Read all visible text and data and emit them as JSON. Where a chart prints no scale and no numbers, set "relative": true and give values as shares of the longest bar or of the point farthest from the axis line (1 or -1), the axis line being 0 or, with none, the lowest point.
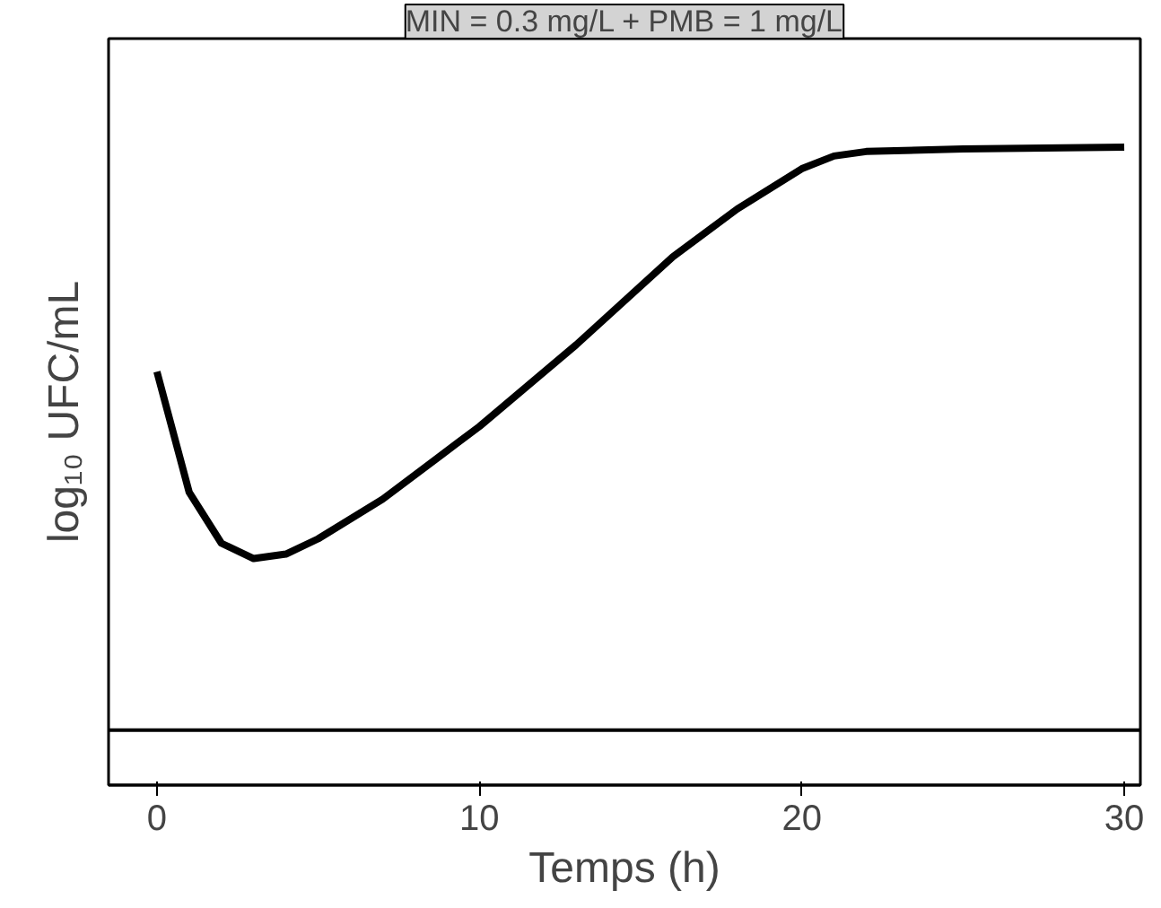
{
  "chart_data": {
    "type": "line",
    "title": "MIN = 0.3 mg/L + PMB = 1 mg/L",
    "xlabel": "Temps (h)",
    "ylabel": "log₁₀ UFC/mL",
    "relative": true,
    "x": [
      0,
      1,
      2,
      3,
      4,
      5,
      7,
      10,
      13,
      16,
      18,
      20,
      21,
      22,
      25,
      30
    ],
    "series": [
      {
        "color": "#000000",
        "values": [
          0.648,
          0.459,
          0.379,
          0.355,
          0.362,
          0.386,
          0.448,
          0.562,
          0.69,
          0.828,
          0.903,
          0.966,
          0.986,
          0.993,
          0.997,
          1
        ]
      }
    ],
    "xlim": [
      -1.5,
      30.5
    ],
    "xticks": [
      0,
      10,
      20,
      30
    ],
    "ref_lines": [
      {
        "axis": "y",
        "value": 0.086,
        "color": "#000000"
      }
    ],
    "grid": false
  }
}
